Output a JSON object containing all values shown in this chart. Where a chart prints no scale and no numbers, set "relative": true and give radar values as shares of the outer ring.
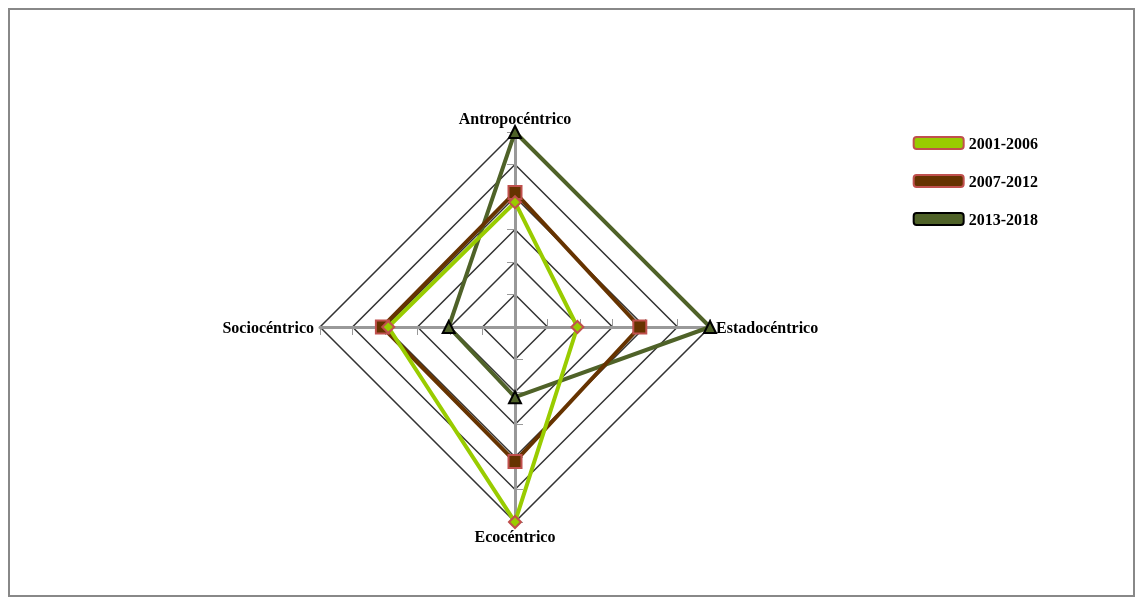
{
  "chart_data": {
    "type": "radar",
    "relative": true,
    "categories": [
      "Antropocéntrico",
      "Estadocéntrico",
      "Ecocéntrico",
      "Sociocéntrico"
    ],
    "series": [
      {
        "name": "2001-2006",
        "color": "#99cc00",
        "marker": "diamond",
        "values": [
          0.64,
          0.32,
          1,
          0.65
        ]
      },
      {
        "name": "2007-2012",
        "color": "#663300",
        "marker": "square",
        "values": [
          0.69,
          0.64,
          0.69,
          0.68
        ]
      },
      {
        "name": "2013-2018",
        "color": "#4f6228",
        "marker": "triangle",
        "values": [
          1,
          1,
          0.36,
          0.34
        ]
      }
    ],
    "legend": "right",
    "grid": true
  }
}
